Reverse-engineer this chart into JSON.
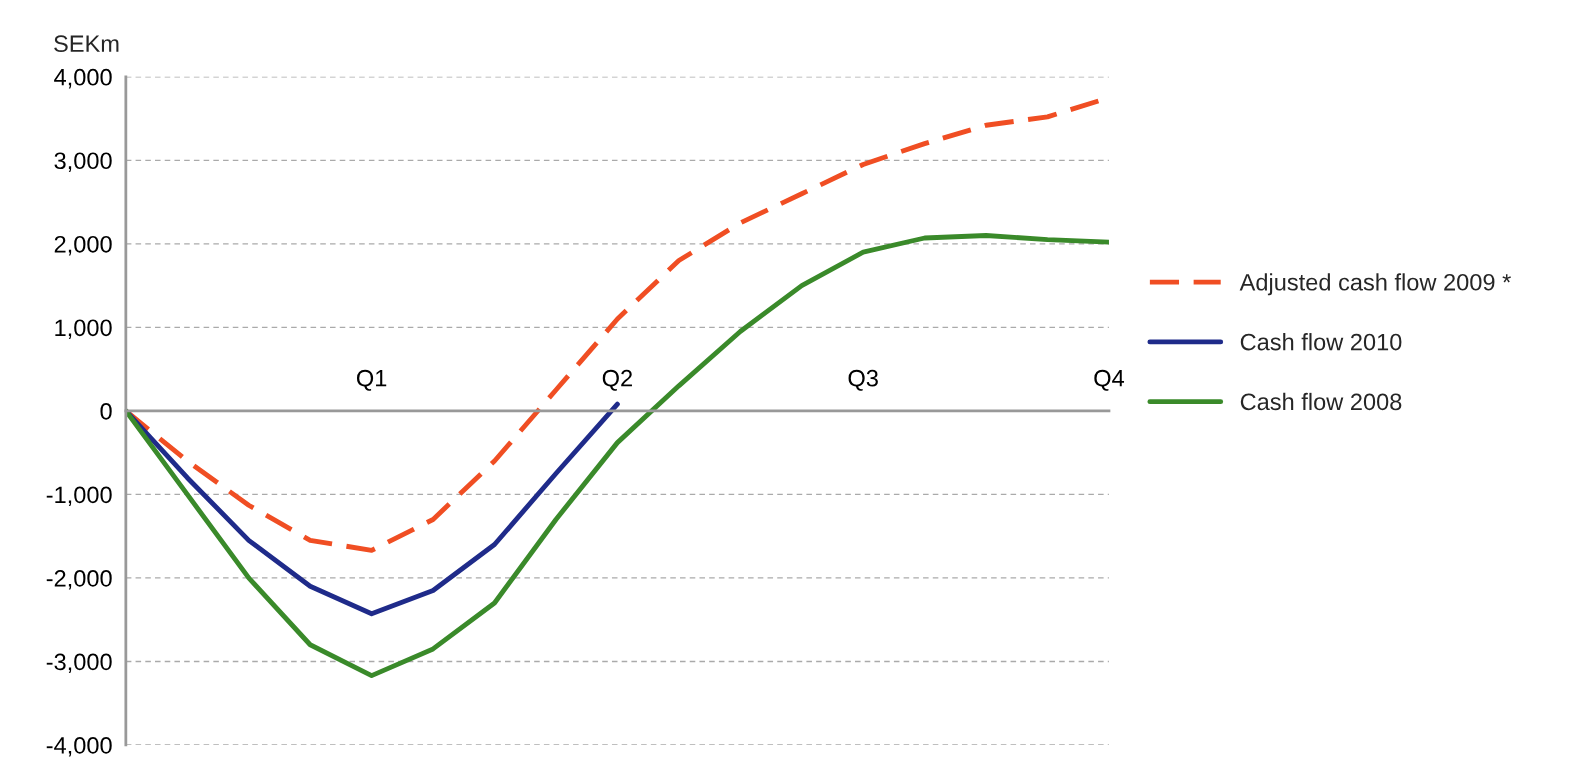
{
  "chart_data": {
    "type": "line",
    "ylabel": "SEKm",
    "categories": [
      null,
      null,
      null,
      null,
      "Q1",
      null,
      null,
      null,
      "Q2",
      null,
      null,
      null,
      "Q3",
      null,
      null,
      null,
      "Q4"
    ],
    "ylim": [
      -4000,
      4000
    ],
    "yticks": [
      {
        "value": -4000,
        "label": "-4,000"
      },
      {
        "value": -3000,
        "label": "-3,000"
      },
      {
        "value": -2000,
        "label": "-2,000"
      },
      {
        "value": -1000,
        "label": "-1,000"
      },
      0,
      {
        "value": 1000,
        "label": "1,000"
      },
      {
        "value": 2000,
        "label": "2,000"
      },
      {
        "value": 3000,
        "label": "3,000"
      },
      {
        "value": 4000,
        "label": "4,000"
      }
    ],
    "grid": "y",
    "legend": "right",
    "series": [
      {
        "name": "Adjusted cash flow 2009 *",
        "color": "#f04e23",
        "line_style": "dashed",
        "values": [
          0,
          -600,
          -1130,
          -1550,
          -1670,
          -1300,
          -600,
          250,
          1100,
          1800,
          2250,
          2600,
          2950,
          3200,
          3420,
          3520,
          3750
        ]
      },
      {
        "name": "Cash flow 2010",
        "color": "#1f2b8a",
        "line_style": "solid",
        "values": [
          0,
          -800,
          -1550,
          -2100,
          -2430,
          -2150,
          -1600,
          -750,
          80,
          null,
          null,
          null,
          null,
          null,
          null,
          null,
          null
        ]
      },
      {
        "name": "Cash flow 2008",
        "color": "#3a8a2a",
        "line_style": "solid",
        "values": [
          0,
          -1000,
          -2000,
          -2800,
          -3170,
          -2850,
          -2300,
          -1300,
          -380,
          300,
          950,
          1500,
          1900,
          2070,
          2100,
          2050,
          2020
        ]
      }
    ]
  }
}
